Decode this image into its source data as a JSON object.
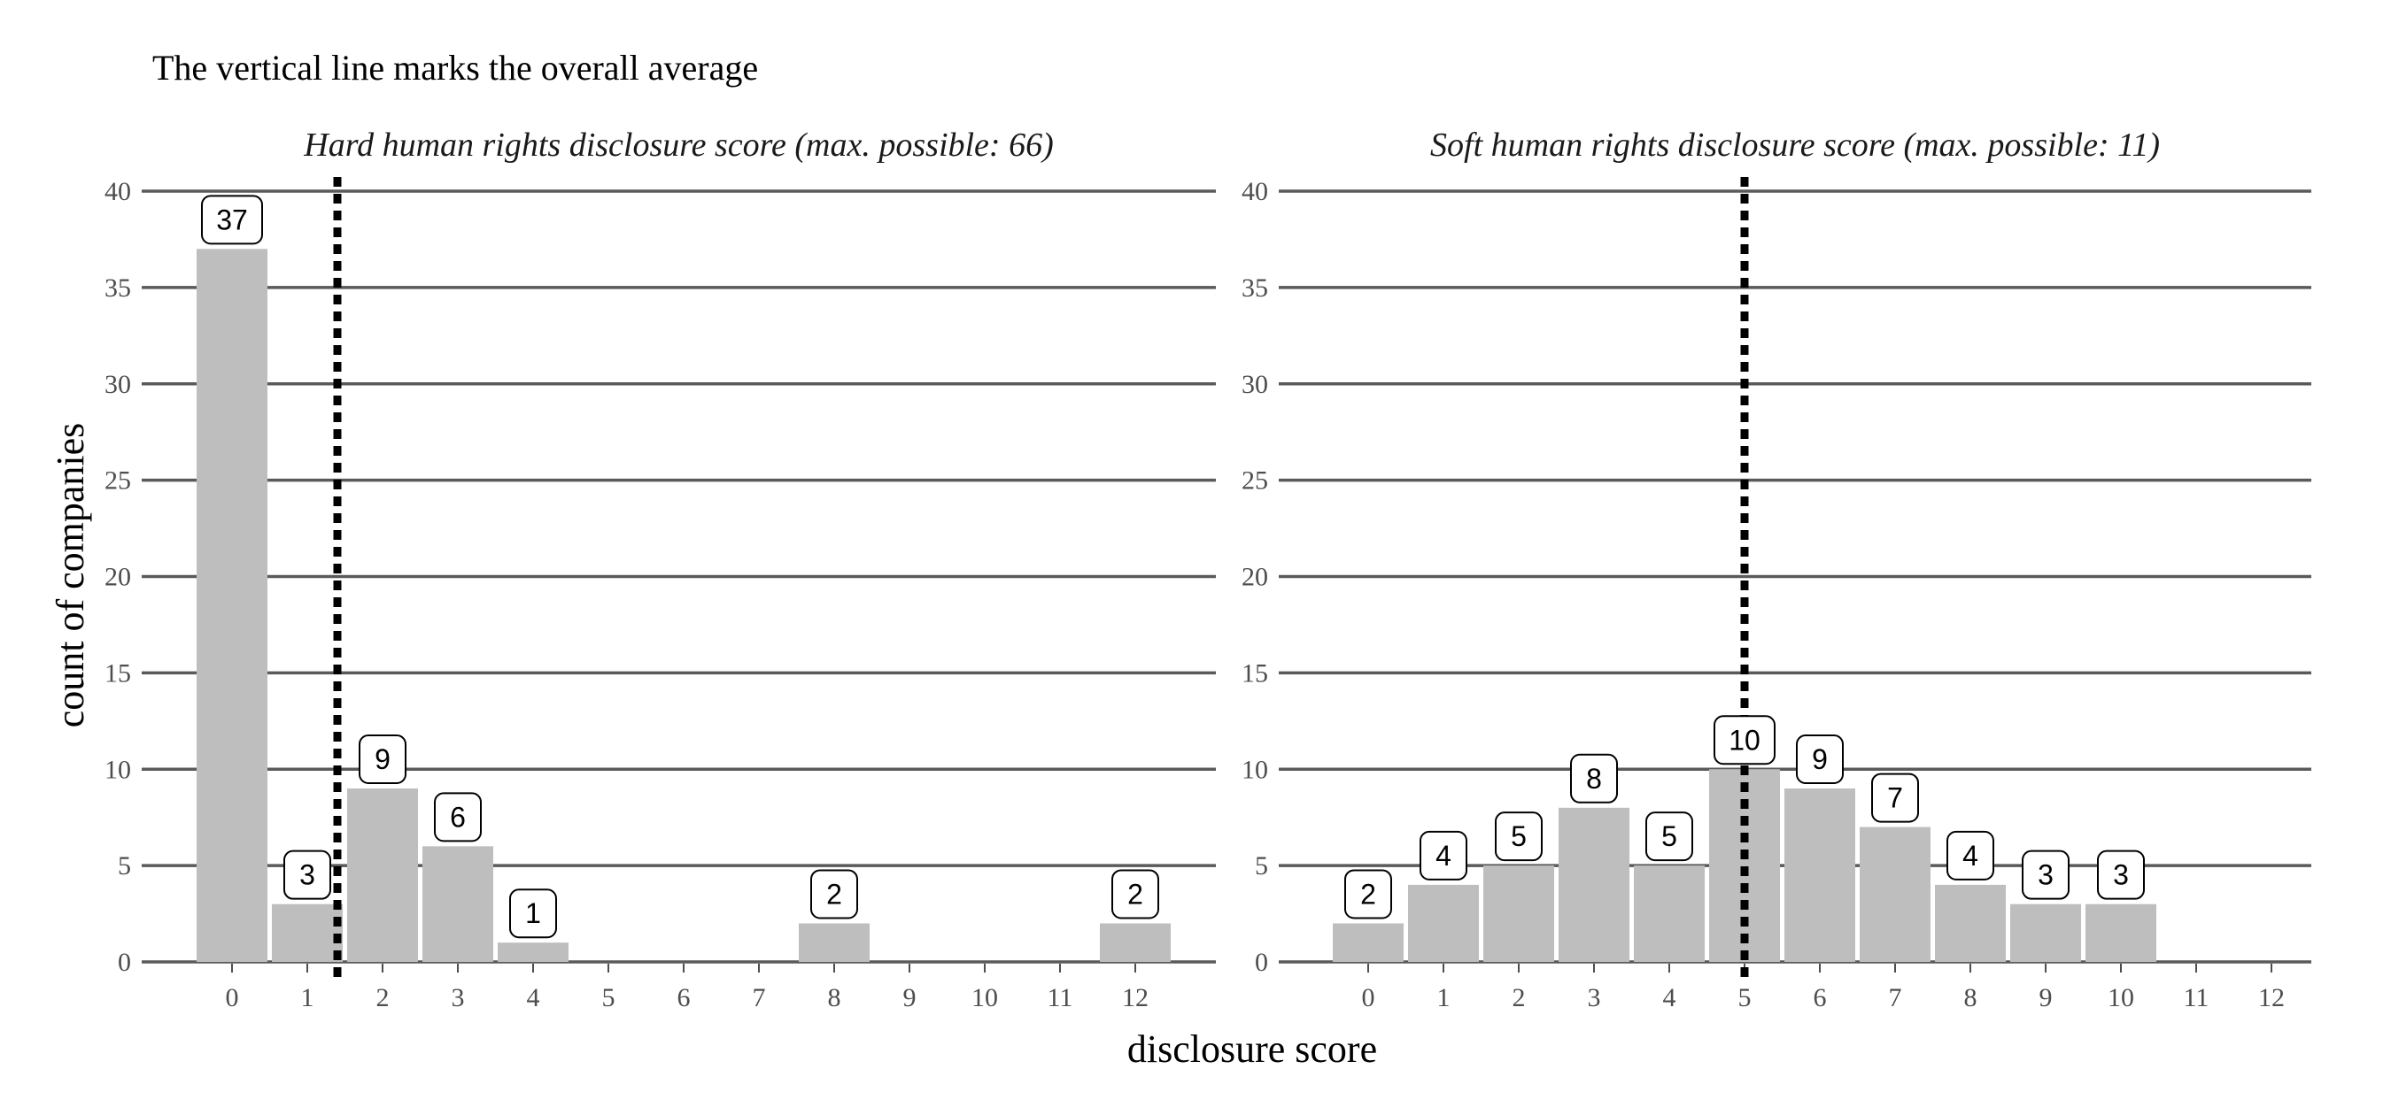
{
  "caption": "The vertical line marks the overall average",
  "xlabel": "disclosure score",
  "ylabel": "count of companies",
  "chart_data": [
    {
      "type": "bar",
      "title": "Hard human rights disclosure score (max. possible: 66)",
      "x": [
        0,
        1,
        2,
        3,
        4,
        5,
        6,
        7,
        8,
        9,
        10,
        11,
        12
      ],
      "values": [
        37,
        3,
        9,
        6,
        1,
        0,
        0,
        0,
        2,
        0,
        0,
        0,
        2
      ],
      "labels": [
        "37",
        "3",
        "9",
        "6",
        "1",
        "",
        "",
        "",
        "2",
        "",
        "",
        "",
        "2"
      ],
      "x_ticks": [
        "0",
        "1",
        "2",
        "3",
        "4",
        "5",
        "6",
        "7",
        "8",
        "9",
        "10",
        "11",
        "12"
      ],
      "y_ticks": [
        "0",
        "5",
        "10",
        "15",
        "20",
        "25",
        "30",
        "35",
        "40"
      ],
      "ylim": [
        0,
        40
      ],
      "average": 1.4,
      "grid": "horizontal",
      "bar_color": "#bebebe"
    },
    {
      "type": "bar",
      "title": "Soft human rights disclosure score (max. possible: 11)",
      "x": [
        0,
        1,
        2,
        3,
        4,
        5,
        6,
        7,
        8,
        9,
        10,
        11,
        12
      ],
      "values": [
        2,
        4,
        5,
        8,
        5,
        10,
        9,
        7,
        4,
        3,
        3,
        0,
        0
      ],
      "labels": [
        "2",
        "4",
        "5",
        "8",
        "5",
        "10",
        "9",
        "7",
        "4",
        "3",
        "3",
        "",
        ""
      ],
      "x_ticks": [
        "0",
        "1",
        "2",
        "3",
        "4",
        "5",
        "6",
        "7",
        "8",
        "9",
        "10",
        "11",
        "12"
      ],
      "y_ticks": [
        "0",
        "5",
        "10",
        "15",
        "20",
        "25",
        "30",
        "35",
        "40"
      ],
      "ylim": [
        0,
        40
      ],
      "average": 5.0,
      "grid": "horizontal",
      "bar_color": "#bebebe"
    }
  ]
}
